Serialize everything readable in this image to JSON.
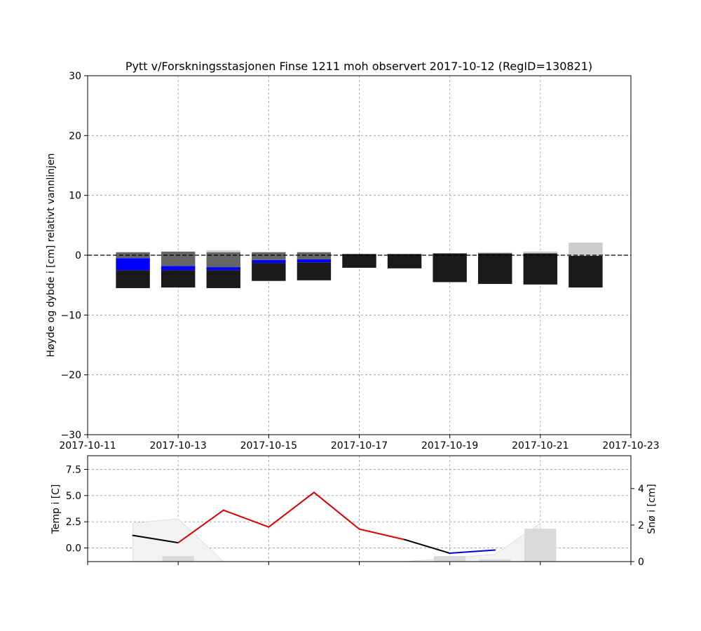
{
  "chart_data": [
    {
      "type": "bar",
      "title": "Pytt v/Forskningsstasjonen Finse 1211 moh observert 2017-10-12 (RegID=130821)",
      "xlabel": "",
      "ylabel": "Høyde og dybde i [cm] relativt vannlinjen",
      "xlim": [
        "2017-10-11",
        "2017-10-23"
      ],
      "ylim": [
        -30,
        30
      ],
      "x_ticks": [
        "2017-10-11",
        "2017-10-13",
        "2017-10-15",
        "2017-10-17",
        "2017-10-19",
        "2017-10-21",
        "2017-10-23"
      ],
      "y_ticks": [
        -30,
        -20,
        -10,
        0,
        10,
        20,
        30
      ],
      "grid": true,
      "reference_line": 0,
      "stack_layers": [
        {
          "layer": "black ice",
          "color": "#1a1a1a"
        },
        {
          "layer": "water",
          "color": "#0000ff"
        },
        {
          "layer": "slush / gray ice",
          "color": "#666666"
        },
        {
          "layer": "snow",
          "color": "#cccccc"
        }
      ],
      "days": [
        {
          "date": "2017-10-12",
          "layers": [
            {
              "color": "#1a1a1a",
              "from": -5.5,
              "to": -2.5
            },
            {
              "color": "#0000ff",
              "from": -2.5,
              "to": -0.5
            },
            {
              "color": "#666666",
              "from": -0.5,
              "to": 0.5
            }
          ]
        },
        {
          "date": "2017-10-13",
          "layers": [
            {
              "color": "#1a1a1a",
              "from": -5.4,
              "to": -2.5
            },
            {
              "color": "#0000ff",
              "from": -2.5,
              "to": -1.8
            },
            {
              "color": "#666666",
              "from": -1.8,
              "to": 0.6
            }
          ]
        },
        {
          "date": "2017-10-14",
          "layers": [
            {
              "color": "#1a1a1a",
              "from": -5.5,
              "to": -2.5
            },
            {
              "color": "#0000ff",
              "from": -2.5,
              "to": -2.0
            },
            {
              "color": "#666666",
              "from": -2.0,
              "to": 0.5
            },
            {
              "color": "#cccccc",
              "from": 0.5,
              "to": 0.8
            }
          ]
        },
        {
          "date": "2017-10-15",
          "layers": [
            {
              "color": "#1a1a1a",
              "from": -4.3,
              "to": -1.3
            },
            {
              "color": "#0000ff",
              "from": -1.3,
              "to": -0.8
            },
            {
              "color": "#666666",
              "from": -0.8,
              "to": 0.5
            }
          ]
        },
        {
          "date": "2017-10-16",
          "layers": [
            {
              "color": "#1a1a1a",
              "from": -4.2,
              "to": -1.2
            },
            {
              "color": "#0000ff",
              "from": -1.2,
              "to": -0.7
            },
            {
              "color": "#666666",
              "from": -0.7,
              "to": 0.5
            }
          ]
        },
        {
          "date": "2017-10-17",
          "layers": [
            {
              "color": "#1a1a1a",
              "from": -2.1,
              "to": 0.2
            }
          ]
        },
        {
          "date": "2017-10-18",
          "layers": [
            {
              "color": "#1a1a1a",
              "from": -2.2,
              "to": 0.2
            }
          ]
        },
        {
          "date": "2017-10-19",
          "layers": [
            {
              "color": "#1a1a1a",
              "from": -4.5,
              "to": 0.3
            }
          ]
        },
        {
          "date": "2017-10-20",
          "layers": [
            {
              "color": "#1a1a1a",
              "from": -4.8,
              "to": 0.3
            },
            {
              "color": "#cccccc",
              "from": 0.3,
              "to": 0.5
            }
          ]
        },
        {
          "date": "2017-10-21",
          "layers": [
            {
              "color": "#1a1a1a",
              "from": -4.9,
              "to": 0.3
            },
            {
              "color": "#cccccc",
              "from": 0.3,
              "to": 0.6
            }
          ]
        },
        {
          "date": "2017-10-22",
          "layers": [
            {
              "color": "#1a1a1a",
              "from": -5.4,
              "to": -0.1
            },
            {
              "color": "#cccccc",
              "from": -0.1,
              "to": 2.1
            }
          ]
        }
      ]
    },
    {
      "type": "line",
      "title": "",
      "xlabel": "",
      "ylabel": "Temp i [C]",
      "y2label": "Snø i [cm]",
      "xlim": [
        "2017-10-11",
        "2017-10-23"
      ],
      "ylim": [
        -1.3,
        8.8
      ],
      "y2lim": [
        0,
        5.8
      ],
      "y_ticks": [
        0.0,
        2.5,
        5.0,
        7.5
      ],
      "y_tick_labels": [
        "0.0",
        "2.5",
        "5.0",
        "7.5"
      ],
      "y2_ticks": [
        0,
        2,
        4
      ],
      "grid": true,
      "temperature": {
        "x": [
          "2017-10-12",
          "2017-10-13",
          "2017-10-14",
          "2017-10-15",
          "2017-10-16",
          "2017-10-17",
          "2017-10-18",
          "2017-10-19",
          "2017-10-20"
        ],
        "values": [
          1.2,
          0.5,
          3.6,
          2.0,
          5.3,
          1.8,
          0.8,
          -0.5,
          -0.2
        ],
        "colors": {
          "above_zero": "#dd0000",
          "below_zero": "#0000dd",
          "base": "#000000"
        }
      },
      "snow_area": {
        "color": "#f2f2f2",
        "x": [
          "2017-10-12",
          "2017-10-13",
          "2017-10-14",
          "2017-10-15",
          "2017-10-16",
          "2017-10-17",
          "2017-10-18",
          "2017-10-19",
          "2017-10-20",
          "2017-10-21"
        ],
        "values": [
          2.1,
          2.35,
          0.0,
          0.0,
          0.0,
          0.0,
          0.0,
          0.2,
          0.4,
          2.1
        ]
      },
      "snow_bars": {
        "color": "#d9d9d9",
        "x": [
          "2017-10-13",
          "2017-10-19",
          "2017-10-20",
          "2017-10-21"
        ],
        "values": [
          0.3,
          0.3,
          0.12,
          1.8
        ]
      }
    }
  ]
}
